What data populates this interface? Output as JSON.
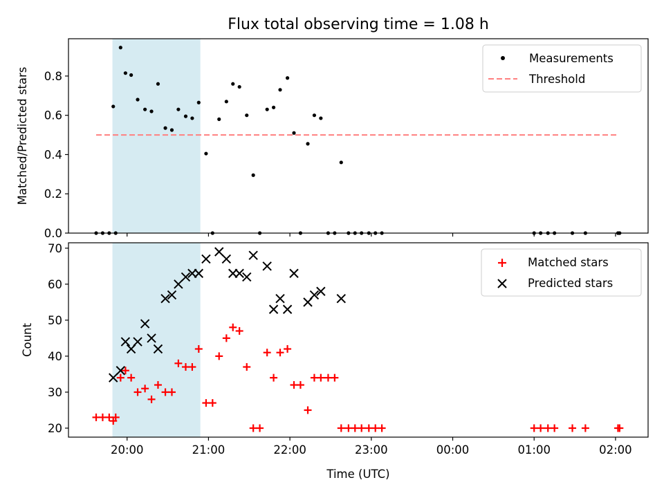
{
  "chart_data": {
    "type": "scatter",
    "title": "Flux total observing time = 1.08 h",
    "xlabel": "Time (UTC)",
    "x_domain_hours": [
      19.28,
      26.4
    ],
    "x_ticks": [
      {
        "value": 20,
        "label": "20:00"
      },
      {
        "value": 21,
        "label": "21:00"
      },
      {
        "value": 22,
        "label": "22:00"
      },
      {
        "value": 23,
        "label": "23:00"
      },
      {
        "value": 24,
        "label": "00:00"
      },
      {
        "value": 25,
        "label": "01:00"
      },
      {
        "value": 26,
        "label": "02:00"
      }
    ],
    "shaded_interval_hours": [
      19.82,
      20.9
    ],
    "shade_color": "#add8e6",
    "panels": [
      {
        "name": "ratio",
        "ylabel": "Matched/Predicted stars",
        "ylim": [
          0,
          0.99
        ],
        "yticks": [
          0.0,
          0.2,
          0.4,
          0.6,
          0.8
        ],
        "ytick_labels": [
          "0.0",
          "0.2",
          "0.4",
          "0.6",
          "0.8"
        ],
        "threshold": {
          "value": 0.5,
          "x_range": [
            19.62,
            26.02
          ],
          "color": "#ff7f7f",
          "name": "Threshold"
        },
        "series": [
          {
            "name": "Measurements",
            "marker": "dot",
            "color": "#000000",
            "points": [
              [
                19.62,
                0
              ],
              [
                19.7,
                0
              ],
              [
                19.78,
                0
              ],
              [
                19.86,
                0
              ],
              [
                19.83,
                0.645
              ],
              [
                19.92,
                0.945
              ],
              [
                19.98,
                0.815
              ],
              [
                20.05,
                0.805
              ],
              [
                20.13,
                0.68
              ],
              [
                20.22,
                0.63
              ],
              [
                20.3,
                0.62
              ],
              [
                20.38,
                0.76
              ],
              [
                20.47,
                0.535
              ],
              [
                20.55,
                0.525
              ],
              [
                20.63,
                0.63
              ],
              [
                20.72,
                0.595
              ],
              [
                20.8,
                0.585
              ],
              [
                20.88,
                0.665
              ],
              [
                20.97,
                0.405
              ],
              [
                21.05,
                0
              ],
              [
                21.13,
                0.58
              ],
              [
                21.22,
                0.67
              ],
              [
                21.3,
                0.76
              ],
              [
                21.38,
                0.745
              ],
              [
                21.47,
                0.6
              ],
              [
                21.55,
                0.295
              ],
              [
                21.63,
                0
              ],
              [
                21.72,
                0.63
              ],
              [
                21.8,
                0.64
              ],
              [
                21.88,
                0.73
              ],
              [
                21.97,
                0.79
              ],
              [
                22.05,
                0.51
              ],
              [
                22.13,
                0
              ],
              [
                22.22,
                0.455
              ],
              [
                22.3,
                0.6
              ],
              [
                22.38,
                0.585
              ],
              [
                22.47,
                0
              ],
              [
                22.55,
                0
              ],
              [
                22.63,
                0.36
              ],
              [
                22.72,
                0
              ],
              [
                22.8,
                0
              ],
              [
                22.88,
                0
              ],
              [
                22.97,
                0
              ],
              [
                23.05,
                0
              ],
              [
                23.13,
                0
              ],
              [
                25.0,
                0
              ],
              [
                25.08,
                0
              ],
              [
                25.17,
                0
              ],
              [
                25.25,
                0
              ],
              [
                25.47,
                0
              ],
              [
                25.63,
                0
              ],
              [
                26.03,
                0
              ],
              [
                26.05,
                0
              ]
            ]
          }
        ]
      },
      {
        "name": "count",
        "ylabel": "Count",
        "ylim": [
          17.5,
          71.5
        ],
        "yticks": [
          20,
          30,
          40,
          50,
          60,
          70
        ],
        "ytick_labels": [
          "20",
          "30",
          "40",
          "50",
          "60",
          "70"
        ],
        "series": [
          {
            "name": "Matched stars",
            "marker": "plus",
            "color": "#ff0000",
            "points": [
              [
                19.62,
                23
              ],
              [
                19.7,
                23
              ],
              [
                19.78,
                23
              ],
              [
                19.86,
                23
              ],
              [
                19.83,
                22
              ],
              [
                19.92,
                34
              ],
              [
                19.98,
                36
              ],
              [
                20.05,
                34
              ],
              [
                20.13,
                30
              ],
              [
                20.22,
                31
              ],
              [
                20.3,
                28
              ],
              [
                20.38,
                32
              ],
              [
                20.47,
                30
              ],
              [
                20.55,
                30
              ],
              [
                20.63,
                38
              ],
              [
                20.72,
                37
              ],
              [
                20.8,
                37
              ],
              [
                20.88,
                42
              ],
              [
                20.97,
                27
              ],
              [
                21.05,
                27
              ],
              [
                21.13,
                40
              ],
              [
                21.22,
                45
              ],
              [
                21.3,
                48
              ],
              [
                21.38,
                47
              ],
              [
                21.47,
                37
              ],
              [
                21.55,
                20
              ],
              [
                21.63,
                20
              ],
              [
                21.72,
                41
              ],
              [
                21.8,
                34
              ],
              [
                21.88,
                41
              ],
              [
                21.97,
                42
              ],
              [
                22.05,
                32
              ],
              [
                22.13,
                32
              ],
              [
                22.22,
                25
              ],
              [
                22.3,
                34
              ],
              [
                22.38,
                34
              ],
              [
                22.47,
                34
              ],
              [
                22.55,
                34
              ],
              [
                22.63,
                20
              ],
              [
                22.72,
                20
              ],
              [
                22.8,
                20
              ],
              [
                22.88,
                20
              ],
              [
                22.97,
                20
              ],
              [
                23.05,
                20
              ],
              [
                23.13,
                20
              ],
              [
                25.0,
                20
              ],
              [
                25.08,
                20
              ],
              [
                25.17,
                20
              ],
              [
                25.25,
                20
              ],
              [
                25.47,
                20
              ],
              [
                25.63,
                20
              ],
              [
                26.03,
                20
              ],
              [
                26.05,
                20
              ]
            ]
          },
          {
            "name": "Predicted stars",
            "marker": "x",
            "color": "#000000",
            "points": [
              [
                19.83,
                34
              ],
              [
                19.92,
                36
              ],
              [
                19.98,
                44
              ],
              [
                20.05,
                42
              ],
              [
                20.13,
                44
              ],
              [
                20.22,
                49
              ],
              [
                20.3,
                45
              ],
              [
                20.38,
                42
              ],
              [
                20.47,
                56
              ],
              [
                20.55,
                57
              ],
              [
                20.63,
                60
              ],
              [
                20.72,
                62
              ],
              [
                20.8,
                63
              ],
              [
                20.88,
                63
              ],
              [
                20.97,
                67
              ],
              [
                21.13,
                69
              ],
              [
                21.22,
                67
              ],
              [
                21.3,
                63
              ],
              [
                21.38,
                63
              ],
              [
                21.47,
                62
              ],
              [
                21.55,
                68
              ],
              [
                21.72,
                65
              ],
              [
                21.8,
                53
              ],
              [
                21.88,
                56
              ],
              [
                21.97,
                53
              ],
              [
                22.05,
                63
              ],
              [
                22.22,
                55
              ],
              [
                22.3,
                57
              ],
              [
                22.38,
                58
              ],
              [
                22.63,
                56
              ]
            ]
          }
        ]
      }
    ],
    "legends": [
      {
        "panel": "ratio",
        "placement": "upper right",
        "entries": [
          "Measurements",
          "Threshold"
        ]
      },
      {
        "panel": "count",
        "placement": "upper right",
        "entries": [
          "Matched stars",
          "Predicted stars"
        ]
      }
    ]
  }
}
